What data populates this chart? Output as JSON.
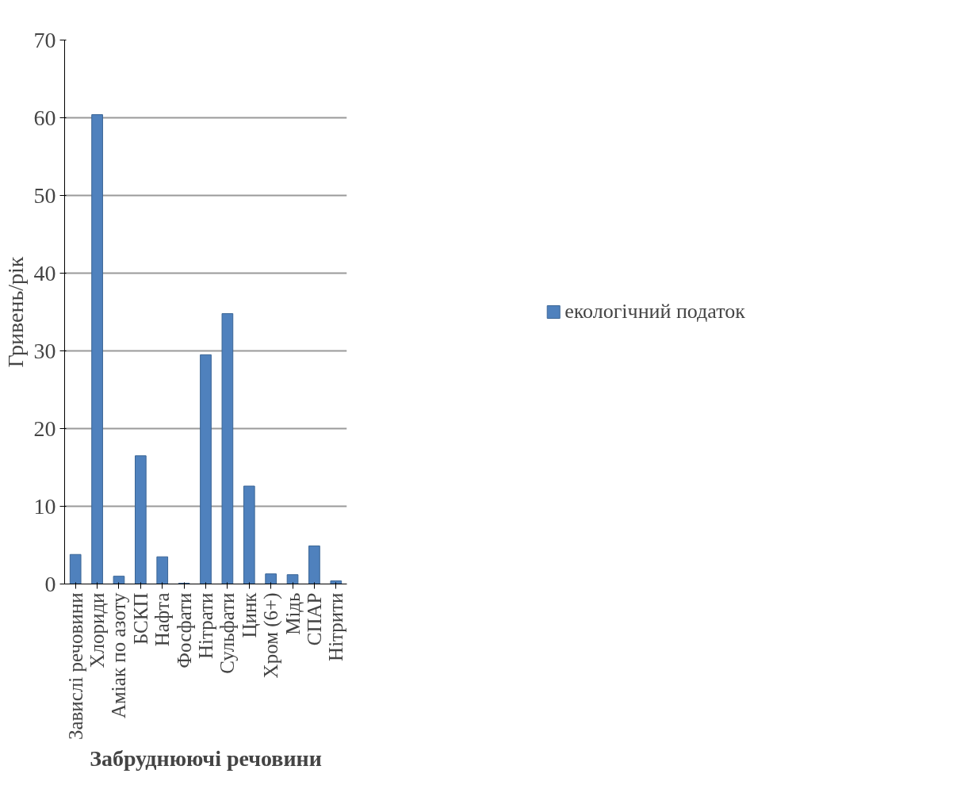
{
  "chart_data": {
    "type": "bar",
    "xlabel": "Забруднюючі речовини",
    "ylabel": "Гривень/рік",
    "categories": [
      "Завислі речовини",
      "Хлориди",
      "Аміак по азоту",
      "БСКП",
      "Нафта",
      "Фосфати",
      "Нітрати",
      "Сульфати",
      "Цинк",
      "Хром (6+)",
      "Мідь",
      "СПАР",
      "Нітрити"
    ],
    "series": [
      {
        "name": "екологічний податок",
        "color": "#4f81bd",
        "values": [
          3.8,
          60.4,
          1.0,
          16.5,
          3.5,
          0.1,
          29.5,
          34.8,
          12.6,
          1.3,
          1.2,
          4.9,
          0.4
        ]
      }
    ],
    "ylim": [
      0,
      70
    ],
    "yticks": [
      0,
      10,
      20,
      30,
      40,
      50,
      60,
      70
    ],
    "grid": "y",
    "legend": "right"
  }
}
